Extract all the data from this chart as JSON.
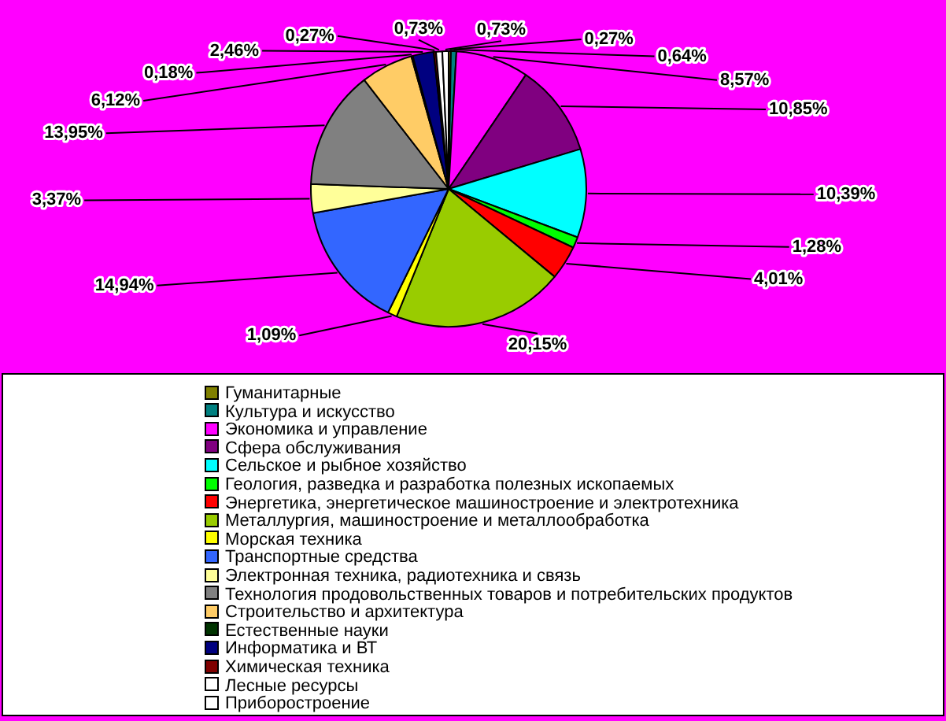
{
  "chart_data": {
    "type": "pie",
    "categories": [
      "Гуманитарные",
      "Культура и искусство",
      "Экономика и управление",
      "Сфера обслуживания",
      "Сельское и рыбное хозяйство",
      "Геология, разведка и разработка полезных ископаемых",
      "Энергетика, энергетическое машиностроение и электротехника",
      "Металлургия, машиностроение и металлообработка",
      "Морская техника",
      "Транспортные средства",
      "Электронная техника, радиотехника и связь",
      "Технология продовольственных товаров и потребительских продуктов",
      "Строительство и архитектура",
      "Естественные науки",
      "Информатика и ВТ",
      "Химическая техника",
      "Лесные ресурсы",
      "Приборостроение"
    ],
    "values": [
      0.27,
      0.64,
      8.57,
      10.85,
      10.39,
      1.28,
      4.01,
      20.15,
      1.09,
      14.94,
      3.37,
      13.95,
      6.12,
      0.18,
      2.46,
      0.27,
      0.73,
      0.73
    ],
    "colors": [
      "#808000",
      "#008080",
      "#ff00ff",
      "#800080",
      "#00ffff",
      "#00ff00",
      "#ff0000",
      "#99cc00",
      "#ffff00",
      "#3366ff",
      "#ffff99",
      "#808080",
      "#ffcc66",
      "#003300",
      "#000080",
      "#800000",
      "#ffffff",
      "#ffffff"
    ],
    "value_labels": [
      "0,27%",
      "0,64%",
      "8,57%",
      "10,85%",
      "10,39%",
      "1,28%",
      "4,01%",
      "20,15%",
      "1,09%",
      "14,94%",
      "3,37%",
      "13,95%",
      "6,12%",
      "0,18%",
      "2,46%",
      "0,27%",
      "0,73%",
      "0,73%"
    ],
    "legend": "bottom"
  }
}
